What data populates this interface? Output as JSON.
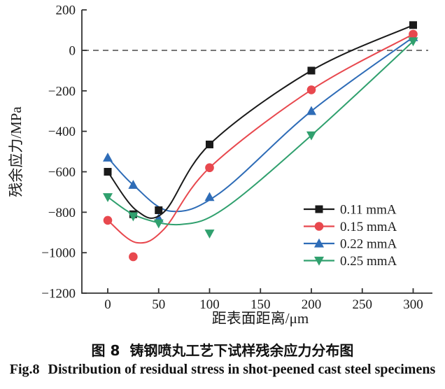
{
  "figure": {
    "caption_zh": {
      "label": "图 8",
      "text": "铸钢喷丸工艺下试样残余应力分布图"
    },
    "caption_en": {
      "label": "Fig.8",
      "text": "Distribution of residual stress in shot-peened cast steel specimens"
    }
  },
  "chart_data": {
    "type": "line",
    "title": "",
    "xlabel": "距表面距离/μm",
    "ylabel": "残余应力/MPa",
    "xlim": [
      -25,
      320
    ],
    "ylim": [
      -1200,
      200
    ],
    "x_ticks": [
      0,
      50,
      100,
      150,
      200,
      250,
      300
    ],
    "y_ticks": [
      200,
      0,
      -200,
      -400,
      -600,
      -800,
      -1000,
      -1200
    ],
    "grid": false,
    "zero_line": {
      "y": 0,
      "style": "dashed",
      "color": "#4a4a4a"
    },
    "legend_position": "lower-right",
    "axis_color": "#333333",
    "series": [
      {
        "name": "0.11 mmA",
        "color": "#1a1a1a",
        "marker": "square",
        "x": [
          0,
          25,
          50,
          100,
          200,
          300
        ],
        "y": [
          -600,
          -810,
          -790,
          -465,
          -100,
          125
        ],
        "curve": [
          [
            0,
            -600
          ],
          [
            28,
            -790
          ],
          [
            55,
            -800
          ],
          [
            100,
            -465
          ],
          [
            200,
            -100
          ],
          [
            300,
            125
          ]
        ]
      },
      {
        "name": "0.15 mmA",
        "color": "#e8484e",
        "marker": "circle",
        "x": [
          0,
          25,
          100,
          200,
          300
        ],
        "y": [
          -840,
          -1020,
          -580,
          -195,
          80
        ],
        "curve": [
          [
            0,
            -840
          ],
          [
            28,
            -950
          ],
          [
            55,
            -885
          ],
          [
            100,
            -580
          ],
          [
            200,
            -195
          ],
          [
            300,
            80
          ]
        ]
      },
      {
        "name": "0.22 mmA",
        "color": "#2e6cb7",
        "marker": "triangle-up",
        "x": [
          0,
          25,
          50,
          100,
          200,
          300
        ],
        "y": [
          -530,
          -665,
          -830,
          -725,
          -300,
          65
        ],
        "curve": [
          [
            0,
            -530
          ],
          [
            25,
            -665
          ],
          [
            62,
            -795
          ],
          [
            110,
            -705
          ],
          [
            200,
            -300
          ],
          [
            300,
            65
          ]
        ]
      },
      {
        "name": "0.25 mmA",
        "color": "#30a06e",
        "marker": "triangle-down",
        "x": [
          0,
          25,
          50,
          100,
          200,
          300
        ],
        "y": [
          -725,
          -820,
          -855,
          -905,
          -420,
          45
        ],
        "curve": [
          [
            0,
            -725
          ],
          [
            30,
            -822
          ],
          [
            72,
            -860
          ],
          [
            115,
            -780
          ],
          [
            200,
            -420
          ],
          [
            300,
            45
          ]
        ]
      }
    ]
  }
}
